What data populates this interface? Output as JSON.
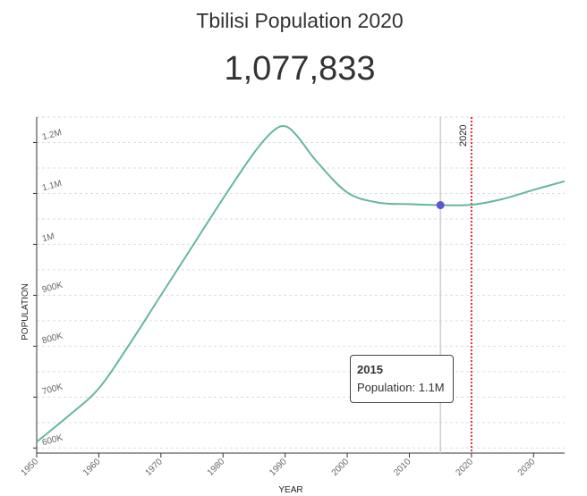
{
  "header": {
    "title": "Tbilisi Population 2020",
    "population_value": "1,077,833"
  },
  "tooltip": {
    "year": "2015",
    "label": "Population:",
    "value": "1.1M"
  },
  "colors": {
    "line": "#66b6a0",
    "marker": "#5b57d4",
    "current_year_line": "#e0302c",
    "hover_line": "#cccccc",
    "grid": "#dddddd"
  },
  "chart_data": {
    "type": "line",
    "title": "Tbilisi Population 2020",
    "xlabel": "YEAR",
    "ylabel": "POPULATION",
    "x_ticks": [
      1950,
      1960,
      1970,
      1980,
      1990,
      2000,
      2010,
      2020,
      2030
    ],
    "y_ticks": [
      {
        "value": 600000,
        "label": "600K"
      },
      {
        "value": 700000,
        "label": "700K"
      },
      {
        "value": 800000,
        "label": "800K"
      },
      {
        "value": 900000,
        "label": "900K"
      },
      {
        "value": 1000000,
        "label": "1M"
      },
      {
        "value": 1100000,
        "label": "1.1M"
      },
      {
        "value": 1200000,
        "label": "1.2M"
      }
    ],
    "xlim": [
      1950,
      2035
    ],
    "ylim": [
      590000,
      1250000
    ],
    "grid": true,
    "series": [
      {
        "x": [
          1950,
          1955,
          1960,
          1965,
          1970,
          1975,
          1980,
          1985,
          1988,
          1990,
          1992,
          1995,
          2000,
          2005,
          2010,
          2015,
          2020,
          2025,
          2030,
          2035
        ],
        "values": [
          612000,
          662000,
          717000,
          805000,
          900000,
          995000,
          1090000,
          1180000,
          1222000,
          1232000,
          1212000,
          1164000,
          1102000,
          1082000,
          1079000,
          1077000,
          1077833,
          1089000,
          1107000,
          1124000
        ]
      }
    ],
    "current_year": {
      "x": 2020,
      "label": "2020"
    },
    "highlight": {
      "x": 2015,
      "y": 1077000
    }
  }
}
